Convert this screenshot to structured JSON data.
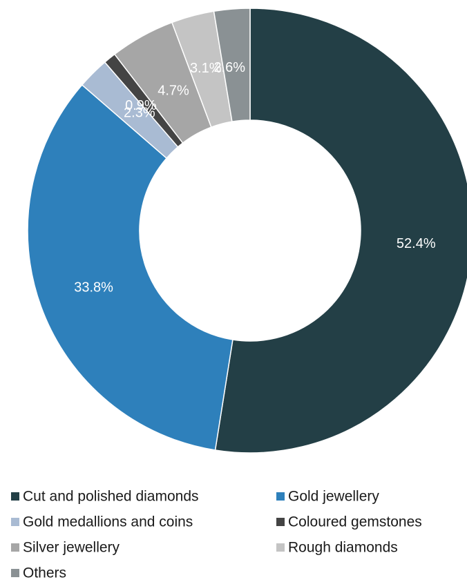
{
  "chart_data": {
    "type": "pie",
    "donut": true,
    "title": "",
    "unit": "%",
    "legend_placement": "bottom",
    "slices": [
      {
        "name": "Cut and polished diamonds",
        "value": 52.4,
        "label": "52.4%",
        "color": "#233f46"
      },
      {
        "name": "Gold jewellery",
        "value": 33.8,
        "label": "33.8%",
        "color": "#2e80bb"
      },
      {
        "name": "Gold medallions and coins",
        "value": 2.3,
        "label": "2.3%",
        "color": "#a9bbd3"
      },
      {
        "name": "Coloured gemstones",
        "value": 0.9,
        "label": "0.9%",
        "color": "#444444"
      },
      {
        "name": "Silver jewellery",
        "value": 4.7,
        "label": "4.7%",
        "color": "#a6a6a6"
      },
      {
        "name": "Rough diamonds",
        "value": 3.1,
        "label": "3.1%",
        "color": "#c4c4c4"
      },
      {
        "name": "Others",
        "value": 2.6,
        "label": "2.6%",
        "color": "#8a9194"
      }
    ]
  }
}
